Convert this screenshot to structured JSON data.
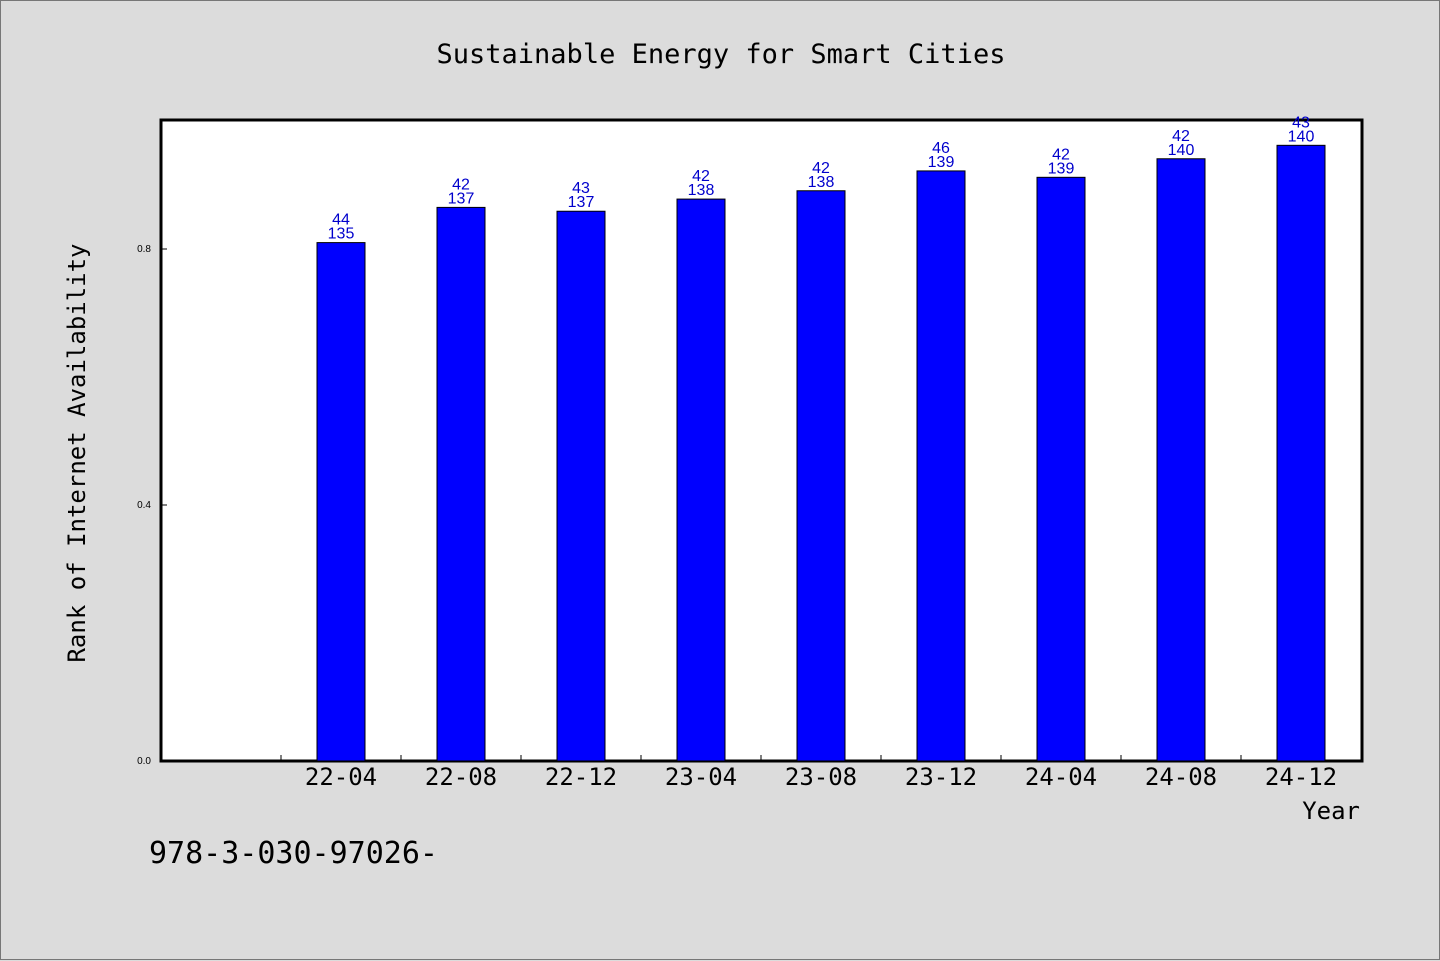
{
  "chart_data": {
    "type": "bar",
    "title": "Sustainable Energy for Smart Cities",
    "xlabel": "Year",
    "ylabel": "Rank of Internet Availability",
    "categories": [
      "22-04",
      "22-08",
      "22-12",
      "23-04",
      "23-08",
      "23-12",
      "24-04",
      "24-08",
      "24-12"
    ],
    "values": [
      0.81,
      0.865,
      0.859,
      0.878,
      0.891,
      0.922,
      0.912,
      0.941,
      0.962
    ],
    "labels_top": [
      "44",
      "42",
      "43",
      "42",
      "42",
      "46",
      "42",
      "42",
      "43"
    ],
    "labels_bottom": [
      "135",
      "137",
      "137",
      "138",
      "138",
      "139",
      "139",
      "140",
      "140"
    ],
    "yticks": [
      "0.0",
      "0.4",
      "0.8"
    ],
    "ylim": [
      0,
      1.0
    ],
    "grid": false,
    "bar_color": "#0000ff",
    "label_color": "#0000cc",
    "footnote": "978-3-030-97026-"
  }
}
